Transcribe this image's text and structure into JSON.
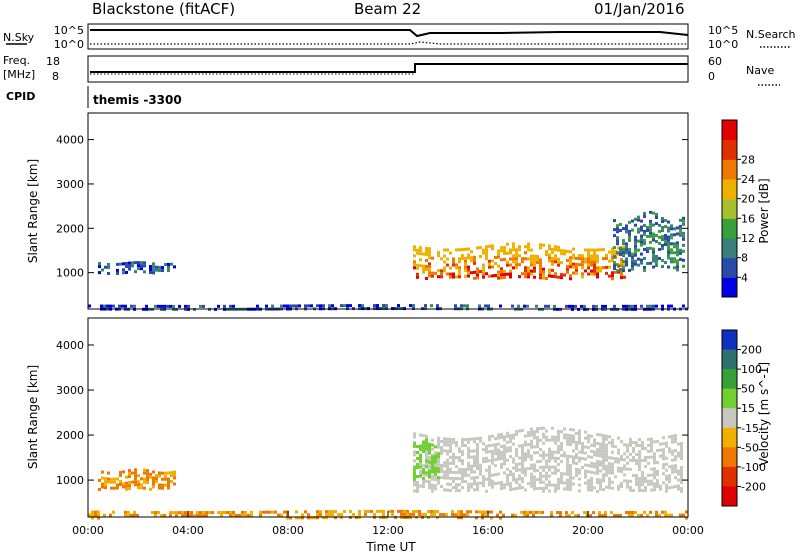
{
  "header": {
    "station": "Blackstone (fitACF)",
    "beam": "Beam 22",
    "date": "01/Jan/2016"
  },
  "noise_panel": {
    "left_label": "N.Sky",
    "right_label": "N.Search",
    "left_ticks": [
      "10^5",
      "10^0"
    ],
    "right_ticks": [
      "10^5",
      "10^0"
    ]
  },
  "freq_panel": {
    "left_label_1": "Freq.",
    "left_label_2": "[MHz]",
    "right_label": "Nave",
    "left_ticks": [
      "18",
      "8"
    ],
    "right_ticks": [
      "60",
      "0"
    ]
  },
  "cpid": {
    "label": "CPID",
    "value": "themis -3300"
  },
  "chart_data": [
    {
      "type": "heatmap",
      "title": "",
      "ylabel": "Slant Range [km]",
      "xlabel": "",
      "xlim": [
        0,
        24
      ],
      "ylim": [
        180,
        4600
      ],
      "yticks": [
        "1000",
        "2000",
        "3000",
        "4000"
      ],
      "colorbar": {
        "label": "Power [dB]",
        "ticks": [
          "4",
          "8",
          "12",
          "16",
          "20",
          "24",
          "28"
        ],
        "colors": [
          "#0000e6",
          "#2a4aaa",
          "#3a7f7a",
          "#38a038",
          "#a8c030",
          "#f0b000",
          "#f07800",
          "#e03000",
          "#e00000"
        ]
      },
      "echo_regions": [
        {
          "t_start_h": 0.4,
          "t_end_h": 3.5,
          "range_min_km": 1000,
          "range_max_km": 1280,
          "level": "8"
        },
        {
          "t_start_h": 13.0,
          "t_end_h": 21.5,
          "range_min_km": 850,
          "range_max_km": 1750,
          "level": "20-28"
        },
        {
          "t_start_h": 21.0,
          "t_end_h": 23.8,
          "range_min_km": 1000,
          "range_max_km": 2500,
          "level": "8-12"
        },
        {
          "t_start_h": 0.0,
          "t_end_h": 24.0,
          "range_min_km": 180,
          "range_max_km": 300,
          "level": "4-8"
        }
      ]
    },
    {
      "type": "heatmap",
      "title": "",
      "ylabel": "Slant Range [km]",
      "xlabel": "Time UT",
      "xlim": [
        0,
        24
      ],
      "ylim": [
        180,
        4600
      ],
      "xticks": [
        "00:00",
        "04:00",
        "08:00",
        "12:00",
        "16:00",
        "20:00",
        "00:00"
      ],
      "yticks": [
        "1000",
        "2000",
        "3000",
        "4000"
      ],
      "colorbar": {
        "label": "Velocity [m s^-1]",
        "ticks": [
          "200",
          "100",
          "50",
          "15",
          "-15",
          "-50",
          "-100",
          "-200"
        ],
        "colors": [
          "#1030c0",
          "#2f7070",
          "#38a038",
          "#70d030",
          "#c8c8c0",
          "#f0b000",
          "#f07800",
          "#e03000",
          "#e00000"
        ]
      },
      "echo_regions": [
        {
          "t_start_h": 0.4,
          "t_end_h": 3.5,
          "range_min_km": 800,
          "range_max_km": 1300,
          "level": "-50"
        },
        {
          "t_start_h": 13.0,
          "t_end_h": 23.8,
          "range_min_km": 700,
          "range_max_km": 2300,
          "level": "-15..15"
        },
        {
          "t_start_h": 13.0,
          "t_end_h": 14.0,
          "range_min_km": 1000,
          "range_max_km": 2000,
          "level": "15"
        },
        {
          "t_start_h": 0.0,
          "t_end_h": 24.0,
          "range_min_km": 180,
          "range_max_km": 350,
          "level": "-50"
        }
      ]
    }
  ]
}
